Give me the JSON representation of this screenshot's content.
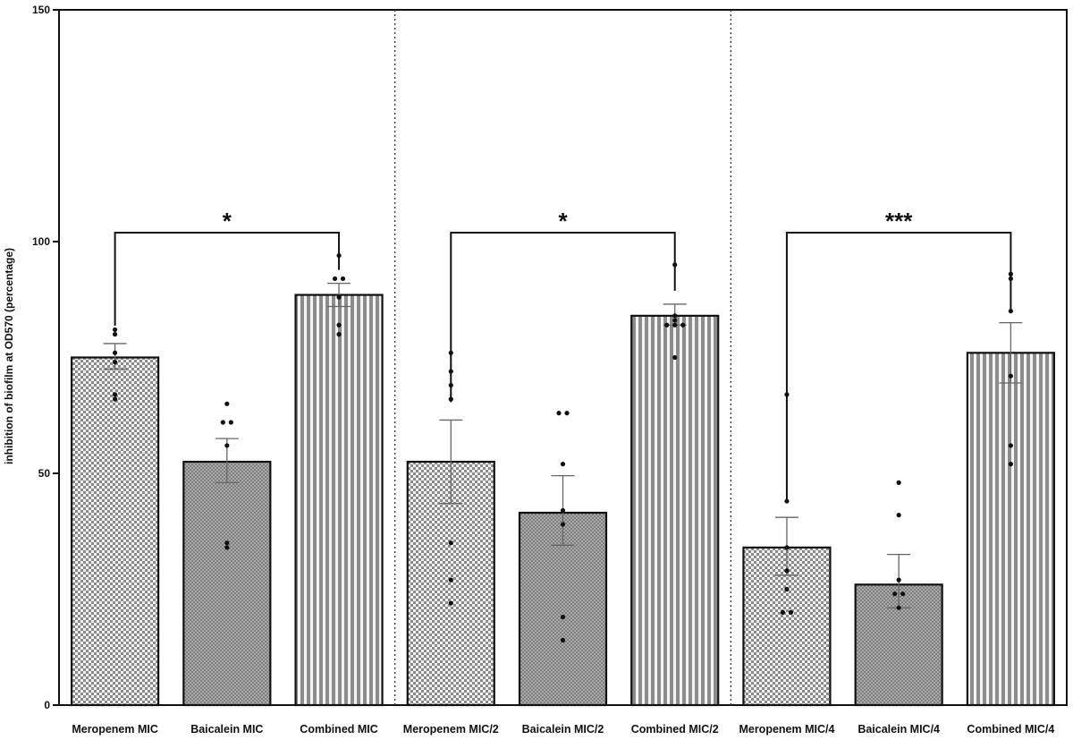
{
  "chart_data": {
    "type": "bar",
    "title": "",
    "xlabel": "",
    "ylabel": "inhibition of biofilm at OD570 (percentage)",
    "ylim": [
      0,
      150
    ],
    "yticks": [
      0,
      50,
      100,
      150
    ],
    "grid": false,
    "groups": [
      "MIC",
      "MIC/2",
      "MIC/4"
    ],
    "categories": [
      "Meropenem MIC",
      "Baicalein MIC",
      "Combined MIC",
      "Meropenem MIC/2",
      "Baicalein MIC/2",
      "Combined MIC/2",
      "Meropenem MIC/4",
      "Baicalein MIC/4",
      "Combined MIC/4"
    ],
    "patterns": [
      "checker",
      "fine",
      "stripes",
      "checker",
      "fine",
      "stripes",
      "checker",
      "fine",
      "stripes"
    ],
    "values": [
      75,
      52.5,
      88.5,
      52.5,
      41.5,
      84,
      34,
      26,
      76
    ],
    "error_upper": [
      78,
      57.5,
      91,
      61.5,
      49.5,
      86.5,
      40.5,
      32.5,
      82.5
    ],
    "error_lower": [
      72.5,
      48,
      86,
      43.5,
      34.5,
      82,
      28,
      21,
      69.5
    ],
    "points": [
      [
        81,
        80,
        76,
        74,
        67,
        66
      ],
      [
        65,
        61,
        61,
        56,
        35,
        34
      ],
      [
        97,
        92,
        92,
        88,
        82,
        80
      ],
      [
        76,
        72,
        69,
        66,
        35,
        27,
        22
      ],
      [
        63,
        63,
        52,
        42,
        39,
        19,
        14
      ],
      [
        95,
        84,
        83,
        82,
        82,
        82,
        75
      ],
      [
        67,
        44,
        34,
        29,
        25,
        20,
        20
      ],
      [
        48,
        41,
        27,
        24,
        24,
        21
      ],
      [
        93,
        92,
        85,
        71,
        56,
        52
      ]
    ],
    "significance": [
      {
        "from": "Meropenem MIC",
        "to": "Combined MIC",
        "label": "*"
      },
      {
        "from": "Meropenem MIC/2",
        "to": "Combined MIC/2",
        "label": "*"
      },
      {
        "from": "Meropenem MIC/4",
        "to": "Combined MIC/4",
        "label": "***"
      }
    ]
  }
}
